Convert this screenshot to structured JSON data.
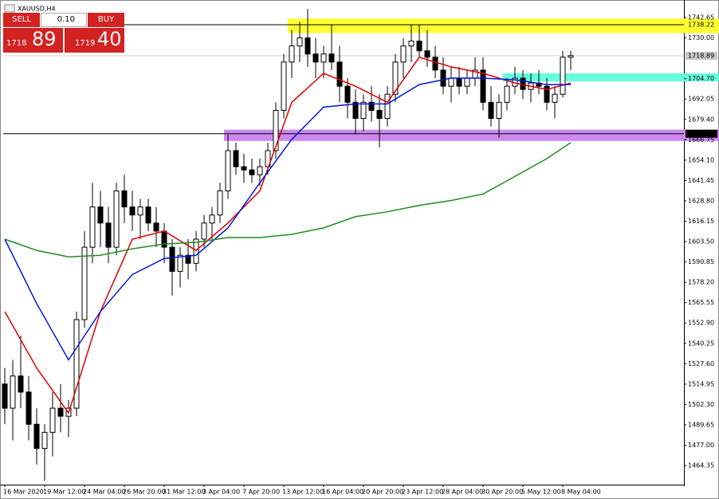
{
  "chart_data": {
    "type": "candlestick",
    "title": "XAUUSD,H4",
    "ylim": [
      1452.5,
      1748.6
    ],
    "yticks": [
      1742.65,
      {
        "value": 1730,
        "label": "1730.00"
      },
      {
        "value": 1704.7,
        "label": "1704.70"
      },
      1692.05,
      {
        "value": 1679.4,
        "label": "1679.40"
      },
      1666.75,
      {
        "value": 1654.1,
        "label": "1654.10"
      },
      1641.45,
      {
        "value": 1628.8,
        "label": "1628.80"
      },
      1616.15,
      {
        "value": 1603.5,
        "label": "1603.50"
      },
      1590.85,
      {
        "value": 1578.2,
        "label": "1578.20"
      },
      1565.55,
      {
        "value": 1552.9,
        "label": "1552.90"
      },
      1540.25,
      {
        "value": 1527.6,
        "label": "1527.60"
      },
      1514.95,
      {
        "value": 1502.3,
        "label": "1502.30"
      },
      1489.65,
      {
        "value": 1477,
        "label": "1477.00"
      },
      1464.35
    ],
    "xticks": [
      {
        "value": 0,
        "label": "16 Mar 2020"
      },
      {
        "value": 5,
        "label": "19 Mar 12:00"
      },
      {
        "value": 10,
        "label": "24 Mar 04:00"
      },
      {
        "value": 15,
        "label": "26 Mar 20:00"
      },
      {
        "value": 20,
        "label": "31 Mar 12:00"
      },
      {
        "value": 25,
        "label": "3 Apr 04:00"
      },
      {
        "value": 30,
        "label": "7 Apr 20:00"
      },
      {
        "value": 35,
        "label": "13 Apr 12:00"
      },
      {
        "value": 40,
        "label": "16 Apr 04:00"
      },
      {
        "value": 45,
        "label": "20 Apr 20:00"
      },
      {
        "value": 50,
        "label": "23 Apr 12:00"
      },
      {
        "value": 55,
        "label": "28 Apr 04:00"
      },
      {
        "value": 60,
        "label": "30 Apr 20:00"
      },
      {
        "value": 65,
        "label": "5 May 12:00"
      },
      {
        "value": 70,
        "label": "8 May 04:00"
      }
    ],
    "open": [
      1515,
      1500,
      1520,
      1510,
      1490,
      1475,
      1485,
      1500,
      1495,
      1500,
      1555,
      1600,
      1625,
      1615,
      1600,
      1635,
      1625,
      1620,
      1625,
      1615,
      1610,
      1600,
      1585,
      1595,
      1590,
      1605,
      1615,
      1620,
      1635,
      1660,
      1650,
      1648,
      1645,
      1650,
      1660,
      1685,
      1715,
      1725,
      1730,
      1720,
      1715,
      1720,
      1715,
      1700,
      1690,
      1680,
      1690,
      1685,
      1680,
      1695,
      1715,
      1725,
      1728,
      1722,
      1718,
      1710,
      1700,
      1705,
      1700,
      1705,
      1710,
      1690,
      1680,
      1690,
      1700,
      1705,
      1698,
      1702,
      1700,
      1690,
      1695,
      1718
    ],
    "high": [
      1525,
      1530,
      1545,
      1520,
      1500,
      1490,
      1510,
      1515,
      1505,
      1560,
      1610,
      1640,
      1635,
      1625,
      1640,
      1645,
      1635,
      1630,
      1630,
      1625,
      1615,
      1605,
      1600,
      1605,
      1610,
      1620,
      1625,
      1640,
      1670,
      1665,
      1658,
      1655,
      1655,
      1665,
      1690,
      1720,
      1735,
      1740,
      1748,
      1730,
      1725,
      1738,
      1725,
      1705,
      1698,
      1695,
      1700,
      1695,
      1700,
      1720,
      1730,
      1738,
      1738,
      1735,
      1725,
      1718,
      1712,
      1712,
      1710,
      1718,
      1718,
      1700,
      1695,
      1705,
      1712,
      1710,
      1708,
      1710,
      1705,
      1700,
      1722,
      1722
    ],
    "low": [
      1490,
      1480,
      1500,
      1480,
      1465,
      1455,
      1470,
      1485,
      1482,
      1495,
      1550,
      1590,
      1600,
      1590,
      1595,
      1615,
      1610,
      1605,
      1610,
      1600,
      1590,
      1570,
      1575,
      1580,
      1585,
      1600,
      1605,
      1615,
      1630,
      1645,
      1640,
      1640,
      1638,
      1645,
      1655,
      1680,
      1705,
      1715,
      1712,
      1705,
      1705,
      1710,
      1690,
      1680,
      1670,
      1672,
      1678,
      1662,
      1675,
      1690,
      1705,
      1715,
      1718,
      1712,
      1705,
      1695,
      1690,
      1695,
      1695,
      1700,
      1685,
      1675,
      1668,
      1685,
      1695,
      1692,
      1690,
      1695,
      1685,
      1680,
      1693,
      1710
    ],
    "close": [
      1500,
      1520,
      1510,
      1490,
      1475,
      1485,
      1500,
      1495,
      1500,
      1555,
      1600,
      1625,
      1615,
      1600,
      1635,
      1625,
      1620,
      1625,
      1615,
      1610,
      1600,
      1585,
      1595,
      1590,
      1605,
      1615,
      1620,
      1635,
      1660,
      1650,
      1648,
      1645,
      1650,
      1660,
      1685,
      1715,
      1725,
      1730,
      1720,
      1715,
      1720,
      1715,
      1700,
      1690,
      1680,
      1690,
      1685,
      1680,
      1695,
      1715,
      1725,
      1728,
      1722,
      1718,
      1710,
      1700,
      1705,
      1700,
      1705,
      1710,
      1690,
      1680,
      1690,
      1700,
      1705,
      1698,
      1702,
      1700,
      1690,
      1695,
      1718,
      1719
    ],
    "series": [
      {
        "color": "#e00000",
        "x": [
          0,
          4,
          8,
          12,
          16,
          20,
          24,
          28,
          32,
          36,
          40,
          44,
          48,
          52,
          56,
          60,
          64,
          68,
          71
        ],
        "values": [
          1560,
          1525,
          1497,
          1560,
          1605,
          1610,
          1598,
          1615,
          1635,
          1690,
          1708,
          1700,
          1690,
          1718,
          1712,
          1708,
          1702,
          1698,
          1702
        ]
      },
      {
        "color": "#0018e0",
        "x": [
          0,
          4,
          8,
          12,
          16,
          20,
          24,
          28,
          32,
          36,
          40,
          44,
          48,
          52,
          56,
          60,
          64,
          68,
          71
        ],
        "values": [
          1605,
          1565,
          1530,
          1560,
          1583,
          1593,
          1595,
          1612,
          1640,
          1667,
          1687,
          1689,
          1689,
          1701,
          1705,
          1705,
          1704,
          1701,
          1701
        ]
      },
      {
        "color": "#1e8c1e",
        "x": [
          0,
          4,
          8,
          12,
          16,
          20,
          24,
          28,
          32,
          36,
          40,
          44,
          48,
          52,
          56,
          60,
          64,
          68,
          71
        ],
        "values": [
          1605,
          1598,
          1594,
          1595,
          1599,
          1602,
          1603,
          1606,
          1606,
          1608,
          1612,
          1619,
          1622,
          1626,
          1629,
          1633,
          1644,
          1655,
          1665
        ]
      }
    ],
    "zones": [
      {
        "from": 1733,
        "to": 1742,
        "start": 36,
        "color": "#ffff33"
      },
      {
        "from": 1703,
        "to": 1708,
        "start": 63,
        "color": "#66ffdd"
      },
      {
        "from": 1666,
        "to": 1673,
        "start": 28,
        "color": "#cc88ee"
      }
    ],
    "levels": [
      {
        "value": 1738.22,
        "color": "#ffff33"
      },
      {
        "value": 1670.49,
        "color": "#000000"
      }
    ],
    "last_price": 1718.89
  },
  "trade_panel": {
    "sell": "SELL",
    "buy": "BUY",
    "volume": "0.10",
    "sell_small": "1718",
    "sell_big": "89",
    "buy_small": "1719",
    "buy_big": "40"
  }
}
